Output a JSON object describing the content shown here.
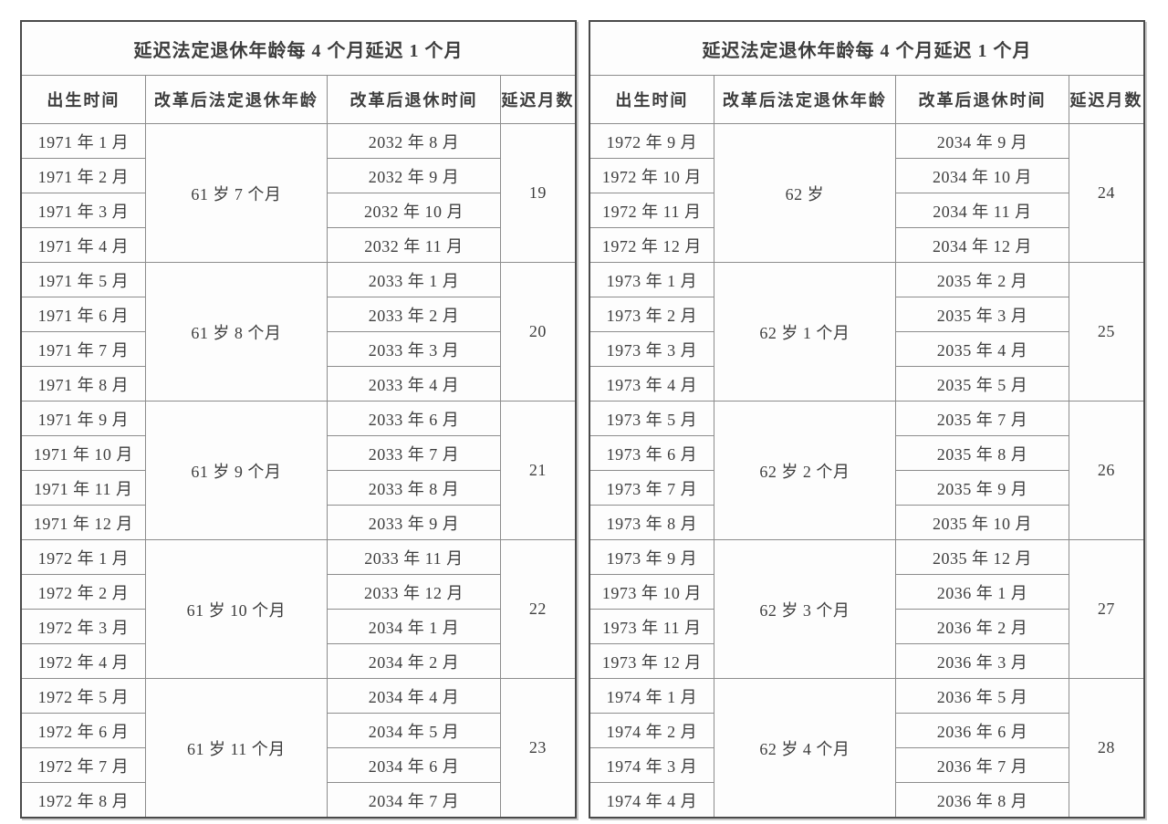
{
  "document": {
    "background": "#ffffff",
    "text_color": "#3d3d3d",
    "outer_border_color": "#4a4a4a",
    "inner_border_color": "#8c8c8c"
  },
  "tables": [
    {
      "title": "延迟法定退休年龄每 4 个月延迟 1 个月",
      "headers": [
        "出生时间",
        "改革后法定退休年龄",
        "改革后退休时间",
        "延迟月数"
      ],
      "groups": [
        {
          "age": "61 岁 7 个月",
          "delay": "19",
          "rows": [
            {
              "birth": "1971 年 1 月",
              "retire": "2032 年 8 月"
            },
            {
              "birth": "1971 年 2 月",
              "retire": "2032 年 9 月"
            },
            {
              "birth": "1971 年 3 月",
              "retire": "2032 年 10 月"
            },
            {
              "birth": "1971 年 4 月",
              "retire": "2032 年 11 月"
            }
          ]
        },
        {
          "age": "61 岁 8 个月",
          "delay": "20",
          "rows": [
            {
              "birth": "1971 年 5 月",
              "retire": "2033 年 1 月"
            },
            {
              "birth": "1971 年 6 月",
              "retire": "2033 年 2 月"
            },
            {
              "birth": "1971 年 7 月",
              "retire": "2033 年 3 月"
            },
            {
              "birth": "1971 年 8 月",
              "retire": "2033 年 4 月"
            }
          ]
        },
        {
          "age": "61 岁 9 个月",
          "delay": "21",
          "rows": [
            {
              "birth": "1971 年 9 月",
              "retire": "2033 年 6 月"
            },
            {
              "birth": "1971 年 10 月",
              "retire": "2033 年 7 月"
            },
            {
              "birth": "1971 年 11 月",
              "retire": "2033 年 8 月"
            },
            {
              "birth": "1971 年 12 月",
              "retire": "2033 年 9 月"
            }
          ]
        },
        {
          "age": "61 岁 10 个月",
          "delay": "22",
          "rows": [
            {
              "birth": "1972 年 1 月",
              "retire": "2033 年 11 月"
            },
            {
              "birth": "1972 年 2 月",
              "retire": "2033 年 12 月"
            },
            {
              "birth": "1972 年 3 月",
              "retire": "2034 年 1 月"
            },
            {
              "birth": "1972 年 4 月",
              "retire": "2034 年 2 月"
            }
          ]
        },
        {
          "age": "61 岁 11 个月",
          "delay": "23",
          "rows": [
            {
              "birth": "1972 年 5 月",
              "retire": "2034 年 4 月"
            },
            {
              "birth": "1972 年 6 月",
              "retire": "2034 年 5 月"
            },
            {
              "birth": "1972 年 7 月",
              "retire": "2034 年 6 月"
            },
            {
              "birth": "1972 年 8 月",
              "retire": "2034 年 7 月"
            }
          ]
        }
      ]
    },
    {
      "title": "延迟法定退休年龄每 4 个月延迟 1 个月",
      "headers": [
        "出生时间",
        "改革后法定退休年龄",
        "改革后退休时间",
        "延迟月数"
      ],
      "groups": [
        {
          "age": "62 岁",
          "delay": "24",
          "rows": [
            {
              "birth": "1972 年 9 月",
              "retire": "2034 年 9 月"
            },
            {
              "birth": "1972 年 10 月",
              "retire": "2034 年 10 月"
            },
            {
              "birth": "1972 年 11 月",
              "retire": "2034 年 11 月"
            },
            {
              "birth": "1972 年 12 月",
              "retire": "2034 年 12 月"
            }
          ]
        },
        {
          "age": "62 岁 1 个月",
          "delay": "25",
          "rows": [
            {
              "birth": "1973 年 1 月",
              "retire": "2035 年 2 月"
            },
            {
              "birth": "1973 年 2 月",
              "retire": "2035 年 3 月"
            },
            {
              "birth": "1973 年 3 月",
              "retire": "2035 年 4 月"
            },
            {
              "birth": "1973 年 4 月",
              "retire": "2035 年 5 月"
            }
          ]
        },
        {
          "age": "62 岁 2 个月",
          "delay": "26",
          "rows": [
            {
              "birth": "1973 年 5 月",
              "retire": "2035 年 7 月"
            },
            {
              "birth": "1973 年 6 月",
              "retire": "2035 年 8 月"
            },
            {
              "birth": "1973 年 7 月",
              "retire": "2035 年 9 月"
            },
            {
              "birth": "1973 年 8 月",
              "retire": "2035 年 10 月"
            }
          ]
        },
        {
          "age": "62 岁 3 个月",
          "delay": "27",
          "rows": [
            {
              "birth": "1973 年 9 月",
              "retire": "2035 年 12 月"
            },
            {
              "birth": "1973 年 10 月",
              "retire": "2036 年 1 月"
            },
            {
              "birth": "1973 年 11 月",
              "retire": "2036 年 2 月"
            },
            {
              "birth": "1973 年 12 月",
              "retire": "2036 年 3 月"
            }
          ]
        },
        {
          "age": "62 岁 4 个月",
          "delay": "28",
          "rows": [
            {
              "birth": "1974 年 1 月",
              "retire": "2036 年 5 月"
            },
            {
              "birth": "1974 年 2 月",
              "retire": "2036 年 6 月"
            },
            {
              "birth": "1974 年 3 月",
              "retire": "2036 年 7 月"
            },
            {
              "birth": "1974 年 4 月",
              "retire": "2036 年 8 月"
            }
          ]
        }
      ]
    }
  ]
}
